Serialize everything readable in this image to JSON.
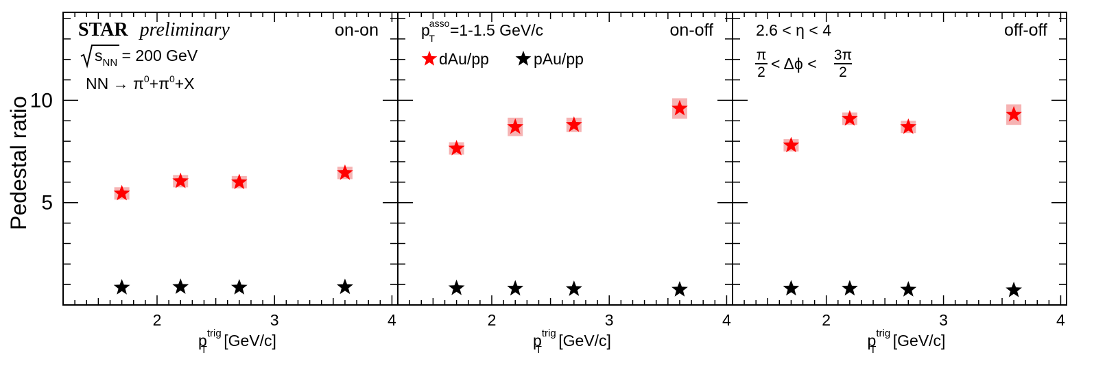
{
  "figure": {
    "ylabel": "Pedestal ratio",
    "xlabel_main": "p",
    "xlabel_sub": "T",
    "xlabel_sup": "trig",
    "xlabel_unit": " [GeV/c]"
  },
  "annotations": {
    "star": "STAR",
    "preliminary": "preliminary",
    "energy_s": "s",
    "energy_sub": "NN",
    "energy_rest": " = 200 GeV",
    "reaction_a": "NN → π",
    "reaction_sup1": "0",
    "reaction_b": "+π",
    "reaction_sup2": "0",
    "reaction_c": "+X",
    "passo_main": "p",
    "passo_sub": "T",
    "passo_sup": "asso",
    "passo_rest": "=1-1.5 GeV/c",
    "eta_range": "2.6 < η < 4",
    "dphi_left_num": "π",
    "dphi_left_den": "2",
    "dphi_middle": "< Δϕ <",
    "dphi_right_num": "3π",
    "dphi_right_den": "2"
  },
  "legend": {
    "items": [
      {
        "label": "dAu/pp",
        "color": "#ff0000",
        "marker": "star-icon"
      },
      {
        "label": "pAu/pp",
        "color": "#000000",
        "marker": "star-icon"
      }
    ]
  },
  "chart_data": [
    {
      "type": "scatter",
      "panel_label": "on-on",
      "xlim": [
        1.2,
        4.05
      ],
      "ylim": [
        0,
        14.3
      ],
      "xticks": [
        2,
        3,
        4
      ],
      "yticks": [
        5,
        10
      ],
      "series": [
        {
          "name": "dAu/pp",
          "color": "#ff0000",
          "x": [
            1.7,
            2.2,
            2.7,
            3.6
          ],
          "y": [
            5.45,
            6.05,
            6.0,
            6.45
          ],
          "sys": [
            0.2,
            0.2,
            0.2,
            0.25
          ]
        },
        {
          "name": "pAu/pp",
          "color": "#000000",
          "x": [
            1.7,
            2.2,
            2.7,
            3.6
          ],
          "y": [
            0.85,
            0.88,
            0.85,
            0.87
          ],
          "sys": [
            0,
            0,
            0,
            0
          ]
        }
      ]
    },
    {
      "type": "scatter",
      "panel_label": "on-off",
      "xlim": [
        1.2,
        4.05
      ],
      "ylim": [
        0,
        14.3
      ],
      "xticks": [
        2,
        3,
        4
      ],
      "yticks": [
        5,
        10
      ],
      "series": [
        {
          "name": "dAu/pp",
          "color": "#ff0000",
          "x": [
            1.7,
            2.2,
            2.7,
            3.6
          ],
          "y": [
            7.65,
            8.7,
            8.8,
            9.6
          ],
          "sys": [
            0.25,
            0.45,
            0.35,
            0.5
          ]
        },
        {
          "name": "pAu/pp",
          "color": "#000000",
          "x": [
            1.7,
            2.2,
            2.7,
            3.6
          ],
          "y": [
            0.82,
            0.8,
            0.78,
            0.75
          ],
          "sys": [
            0,
            0,
            0,
            0
          ]
        }
      ]
    },
    {
      "type": "scatter",
      "panel_label": "off-off",
      "xlim": [
        1.2,
        4.05
      ],
      "ylim": [
        0,
        14.3
      ],
      "xticks": [
        2,
        3,
        4
      ],
      "yticks": [
        5,
        10
      ],
      "series": [
        {
          "name": "dAu/pp",
          "color": "#ff0000",
          "x": [
            1.7,
            2.2,
            2.7,
            3.6
          ],
          "y": [
            7.8,
            9.1,
            8.7,
            9.3
          ],
          "sys": [
            0.25,
            0.3,
            0.3,
            0.5
          ]
        },
        {
          "name": "pAu/pp",
          "color": "#000000",
          "x": [
            1.7,
            2.2,
            2.7,
            3.6
          ],
          "y": [
            0.8,
            0.8,
            0.75,
            0.72
          ],
          "sys": [
            0,
            0,
            0,
            0
          ]
        }
      ]
    }
  ]
}
